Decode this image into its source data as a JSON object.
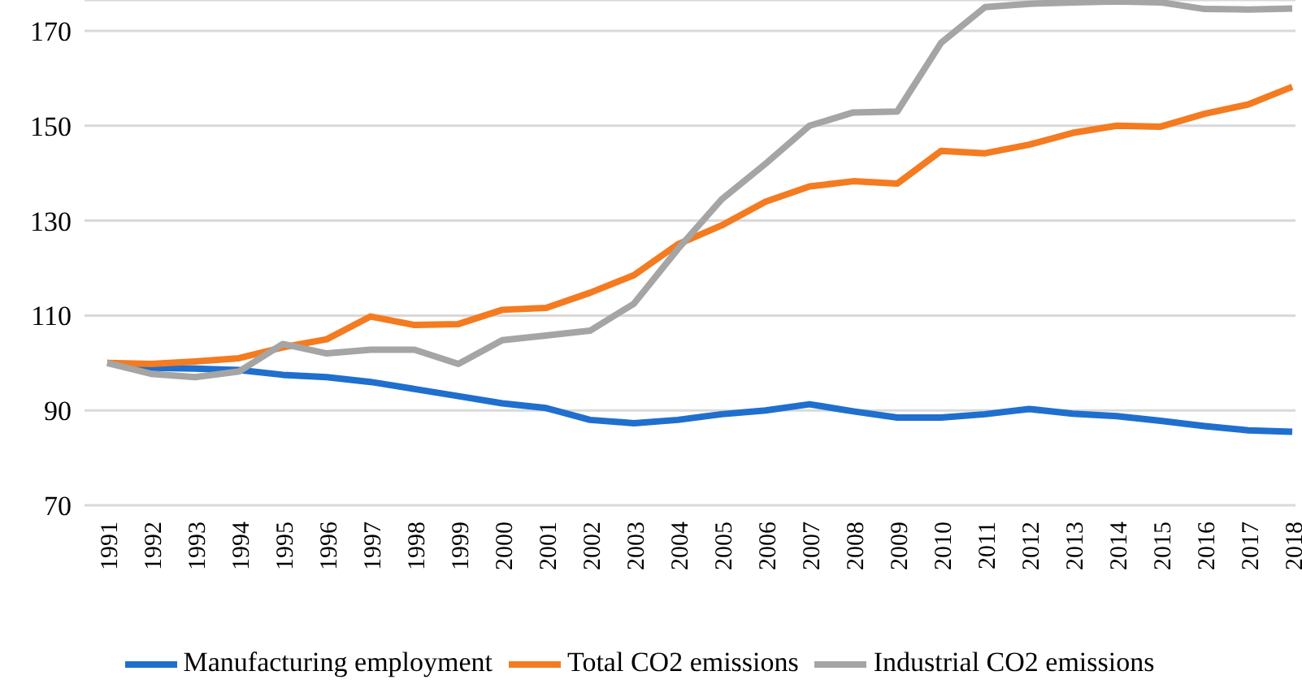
{
  "chart_data": {
    "type": "line",
    "categories": [
      "1991",
      "1992",
      "1993",
      "1994",
      "1995",
      "1996",
      "1997",
      "1998",
      "1999",
      "2000",
      "2001",
      "2002",
      "2003",
      "2004",
      "2005",
      "2006",
      "2007",
      "2008",
      "2009",
      "2010",
      "2011",
      "2012",
      "2013",
      "2014",
      "2015",
      "2016",
      "2017",
      "2018"
    ],
    "series": [
      {
        "name": "Manufacturing employment",
        "color": "#1f6fce",
        "values": [
          100,
          99,
          98.8,
          98.5,
          97.5,
          97,
          96,
          94.5,
          93,
          91.5,
          90.5,
          88,
          87.3,
          88,
          89.2,
          90,
          91.3,
          89.8,
          88.5,
          88.5,
          89.2,
          90.3,
          89.3,
          88.8,
          87.8,
          86.7,
          85.8,
          85.5
        ]
      },
      {
        "name": "Total CO2 emissions",
        "color": "#f47b20",
        "values": [
          100,
          99.8,
          100.3,
          101,
          103.3,
          105,
          109.8,
          108,
          108.2,
          111.2,
          111.6,
          114.8,
          118.5,
          125,
          129,
          134,
          137.2,
          138.3,
          137.8,
          144.7,
          144.2,
          146,
          148.5,
          150,
          149.8,
          152.5,
          154.5,
          158.2
        ]
      },
      {
        "name": "Industrial CO2 emissions",
        "color": "#a5a5a5",
        "values": [
          100,
          97.7,
          97,
          98.2,
          104,
          102,
          102.8,
          102.8,
          99.8,
          104.8,
          105.8,
          106.8,
          112.5,
          124,
          134.5,
          142,
          150,
          152.8,
          153,
          167.5,
          175,
          175.7,
          176,
          176.2,
          176,
          174.6,
          174.5,
          174.7
        ]
      }
    ],
    "ylim": [
      70,
      176.5
    ],
    "yticks": [
      70,
      90,
      110,
      130,
      150,
      170
    ],
    "grid": "y",
    "legend": "bottom",
    "marker": "none",
    "line_style": "solid"
  }
}
